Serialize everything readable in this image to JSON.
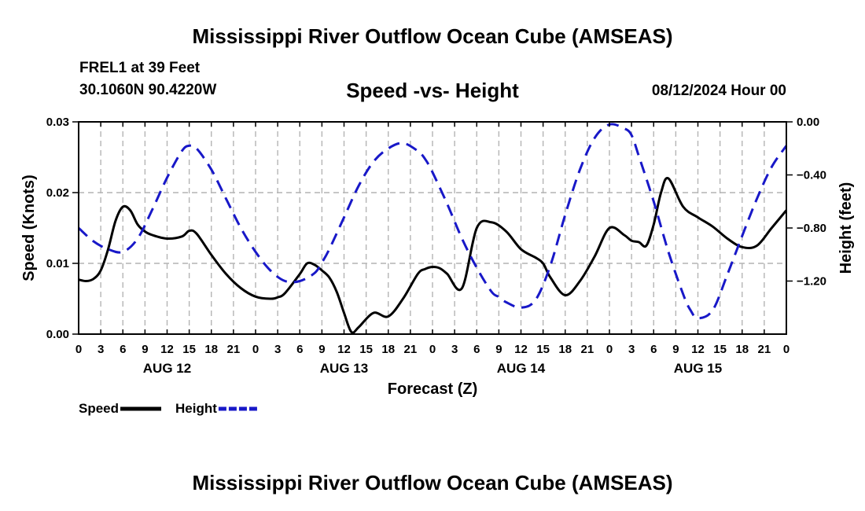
{
  "header": {
    "title": "Mississippi River Outflow Ocean Cube (AMSEAS)",
    "station": "FREL1 at 39 Feet",
    "coords": "30.1060N  90.4220W",
    "subtitle": "Speed -vs- Height",
    "datetime": "08/12/2024 Hour 00"
  },
  "footer": {
    "title": "Mississippi River Outflow Ocean Cube (AMSEAS)"
  },
  "chart_data": {
    "type": "line",
    "title": "Speed -vs- Height",
    "xlabel": "Forecast (Z)",
    "ylabel": "Speed (Knots)",
    "y2label": "Height (feet)",
    "xlim": [
      0,
      96
    ],
    "ylim": [
      0,
      0.03
    ],
    "y2lim": [
      -1.6,
      0.0
    ],
    "grid": true,
    "x_ticks": [
      0,
      3,
      6,
      9,
      12,
      15,
      18,
      21,
      24,
      27,
      30,
      33,
      36,
      39,
      42,
      45,
      48,
      51,
      54,
      57,
      60,
      63,
      66,
      69,
      72,
      75,
      78,
      81,
      84,
      87,
      90,
      93,
      96
    ],
    "x_tick_labels": [
      "0",
      "3",
      "6",
      "9",
      "12",
      "15",
      "18",
      "21",
      "0",
      "3",
      "6",
      "9",
      "12",
      "15",
      "18",
      "21",
      "0",
      "3",
      "6",
      "9",
      "12",
      "15",
      "18",
      "21",
      "0",
      "3",
      "6",
      "9",
      "12",
      "15",
      "18",
      "21",
      "0"
    ],
    "day_labels": [
      {
        "label": "AUG 12",
        "x": 12
      },
      {
        "label": "AUG 13",
        "x": 36
      },
      {
        "label": "AUG 14",
        "x": 60
      },
      {
        "label": "AUG 15",
        "x": 84
      }
    ],
    "y_ticks": [
      0.0,
      0.01,
      0.02,
      0.03
    ],
    "y_tick_labels": [
      "0.00",
      "0.01",
      "0.02",
      "0.03"
    ],
    "y2_ticks": [
      0.0,
      -0.4,
      -0.8,
      -1.2
    ],
    "y2_tick_labels": [
      "0.00",
      "-0.40",
      "-0.80",
      "-1.20"
    ],
    "legend_position": "bottom-left",
    "series": [
      {
        "name": "Speed",
        "axis": "left",
        "color": "#000000",
        "dash": "solid",
        "x": [
          0,
          1,
          2,
          3,
          4,
          5,
          6,
          7,
          8,
          9,
          10,
          12,
          14,
          15,
          16,
          18,
          20,
          22,
          24,
          26,
          27,
          28,
          30,
          31,
          32,
          33,
          34,
          35,
          36,
          37,
          38,
          40,
          42,
          44,
          46,
          47,
          48,
          49,
          50,
          52,
          54,
          56,
          58,
          60,
          62,
          63,
          64,
          66,
          68,
          70,
          72,
          74,
          75,
          76,
          77,
          78,
          79,
          80,
          82,
          84,
          86,
          88,
          90,
          92,
          94,
          96
        ],
        "y": [
          0.0077,
          0.0075,
          0.0078,
          0.009,
          0.012,
          0.016,
          0.018,
          0.0175,
          0.0155,
          0.0145,
          0.014,
          0.0135,
          0.0138,
          0.0146,
          0.0142,
          0.0112,
          0.0085,
          0.0065,
          0.0053,
          0.005,
          0.0052,
          0.0058,
          0.0085,
          0.01,
          0.0098,
          0.009,
          0.008,
          0.006,
          0.003,
          0.0003,
          0.001,
          0.003,
          0.0025,
          0.005,
          0.0085,
          0.0092,
          0.0095,
          0.0093,
          0.0085,
          0.0065,
          0.015,
          0.0158,
          0.0145,
          0.012,
          0.0108,
          0.01,
          0.008,
          0.0055,
          0.0075,
          0.011,
          0.015,
          0.014,
          0.0132,
          0.013,
          0.0125,
          0.0155,
          0.02,
          0.022,
          0.018,
          0.0165,
          0.0152,
          0.0135,
          0.0123,
          0.0125,
          0.015,
          0.0175
        ]
      },
      {
        "name": "Height",
        "axis": "right",
        "color": "#1818c8",
        "dash": "dashed",
        "x": [
          0,
          2,
          4,
          6,
          8,
          10,
          12,
          14,
          15,
          16,
          18,
          20,
          22,
          24,
          26,
          28,
          30,
          32,
          33,
          34,
          36,
          38,
          40,
          42,
          44,
          46,
          47,
          48,
          50,
          52,
          54,
          56,
          57,
          58,
          60,
          62,
          64,
          66,
          68,
          70,
          72,
          74,
          75,
          76,
          78,
          80,
          82,
          83,
          84,
          86,
          88,
          90,
          92,
          94,
          96
        ],
        "y": [
          -0.8,
          -0.9,
          -0.96,
          -0.98,
          -0.88,
          -0.66,
          -0.42,
          -0.22,
          -0.18,
          -0.2,
          -0.36,
          -0.58,
          -0.8,
          -0.98,
          -1.12,
          -1.2,
          -1.2,
          -1.14,
          -1.06,
          -0.96,
          -0.72,
          -0.48,
          -0.3,
          -0.2,
          -0.16,
          -0.22,
          -0.28,
          -0.38,
          -0.62,
          -0.88,
          -1.1,
          -1.28,
          -1.32,
          -1.36,
          -1.4,
          -1.34,
          -1.08,
          -0.7,
          -0.36,
          -0.12,
          -0.02,
          -0.05,
          -0.1,
          -0.26,
          -0.6,
          -0.98,
          -1.3,
          -1.42,
          -1.48,
          -1.42,
          -1.15,
          -0.86,
          -0.58,
          -0.34,
          -0.18
        ]
      }
    ]
  }
}
